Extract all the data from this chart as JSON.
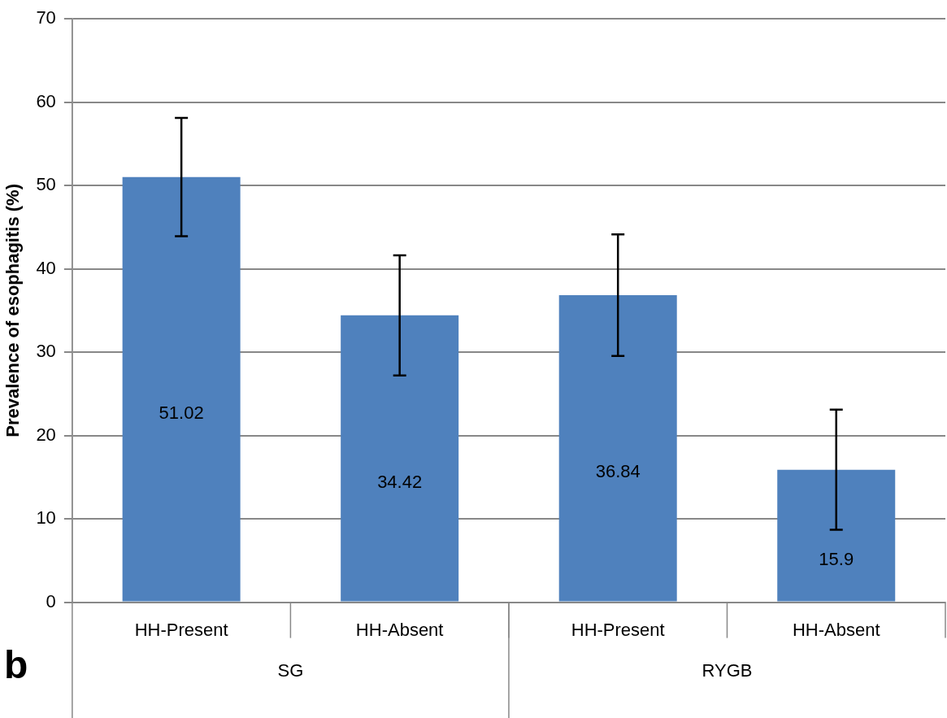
{
  "chart_data": {
    "type": "bar",
    "ylabel": "Prevalence of esophagitis (%)",
    "categories": [
      "HH-Present",
      "HH-Absent",
      "HH-Present",
      "HH-Absent"
    ],
    "values": [
      51.02,
      34.42,
      36.84,
      15.9
    ],
    "errors": [
      7.1,
      7.2,
      7.3,
      7.2
    ],
    "color": "#4f81bd",
    "ylim": [
      0,
      70
    ],
    "yticks": [
      0,
      10,
      20,
      30,
      40,
      50,
      60,
      70
    ],
    "grid": "y",
    "data_labels": true,
    "legend": false,
    "annotations": [
      "SG",
      "RYGB",
      "b"
    ]
  }
}
